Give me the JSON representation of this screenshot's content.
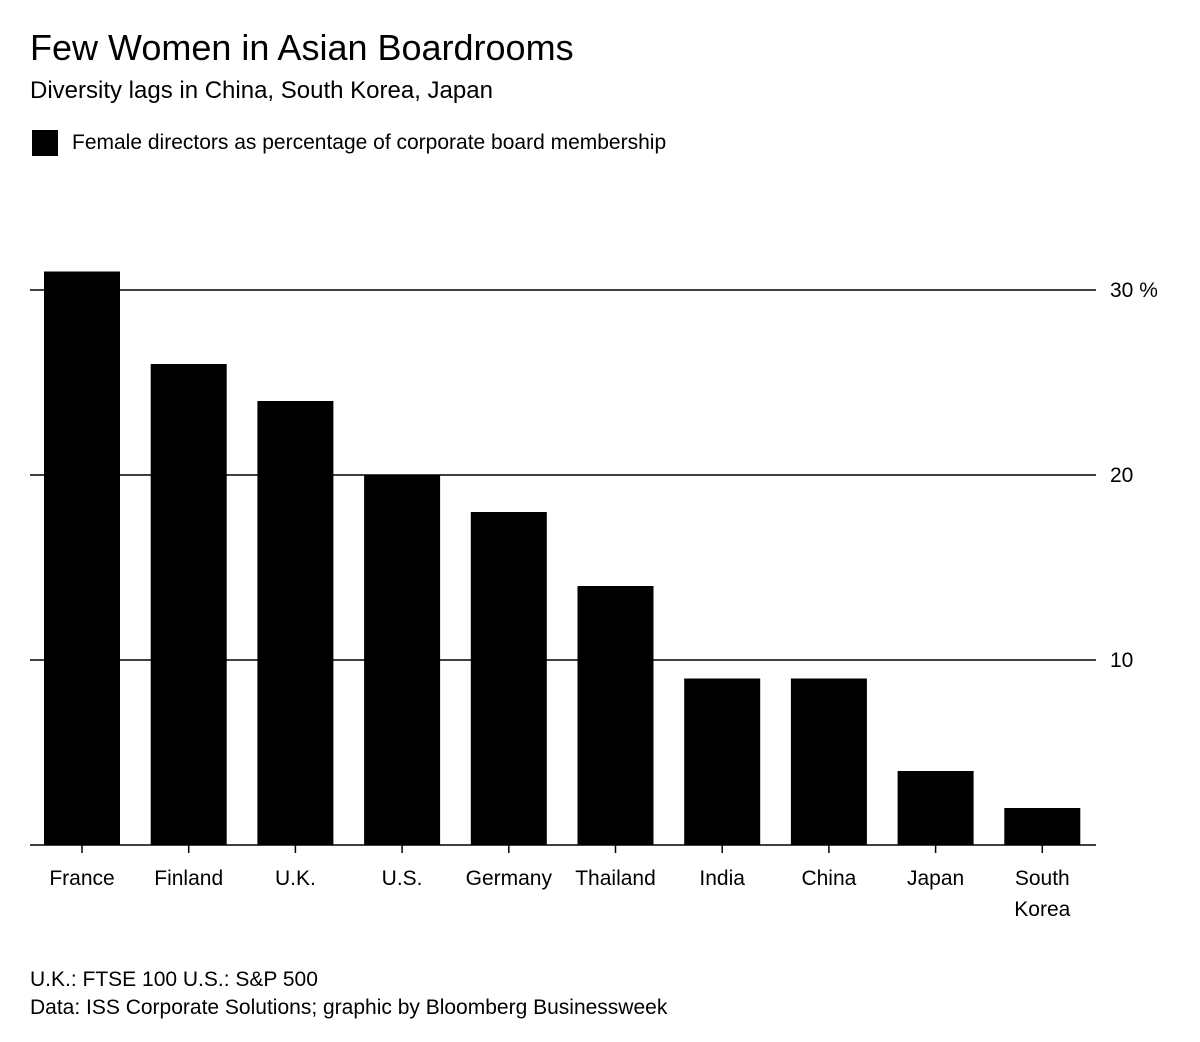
{
  "header": {
    "title": "Few Women in Asian Boardrooms",
    "subtitle": "Diversity lags in China, South Korea, Japan"
  },
  "legend": {
    "label": "Female directors as percentage of corporate board membership",
    "color": "#000000"
  },
  "footer": {
    "note": "U.K.: FTSE 100  U.S.: S&P 500",
    "source": "Data: ISS Corporate Solutions; graphic by Bloomberg Businessweek"
  },
  "chart_data": {
    "type": "bar",
    "title": "Few Women in Asian Boardrooms",
    "subtitle": "Diversity lags in China, South Korea, Japan",
    "xlabel": "",
    "ylabel": "",
    "categories": [
      "France",
      "Finland",
      "U.K.",
      "U.S.",
      "Germany",
      "Thailand",
      "India",
      "China",
      "Japan",
      "South Korea"
    ],
    "category_label_lines": [
      [
        "France"
      ],
      [
        "Finland"
      ],
      [
        "U.K."
      ],
      [
        "U.S."
      ],
      [
        "Germany"
      ],
      [
        "Thailand"
      ],
      [
        "India"
      ],
      [
        "China"
      ],
      [
        "Japan"
      ],
      [
        "South",
        "Korea"
      ]
    ],
    "series": [
      {
        "name": "Female directors as percentage of corporate board membership",
        "color": "#000000",
        "values": [
          31,
          26,
          24,
          20,
          18,
          14,
          9,
          9,
          4,
          2
        ]
      }
    ],
    "ylim": [
      0,
      30
    ],
    "yticks": [
      10,
      20,
      30
    ],
    "ytick_labels": [
      "10",
      "20",
      "30 %"
    ],
    "y_axis_side": "right",
    "grid": true,
    "legend_position": "top-left"
  }
}
